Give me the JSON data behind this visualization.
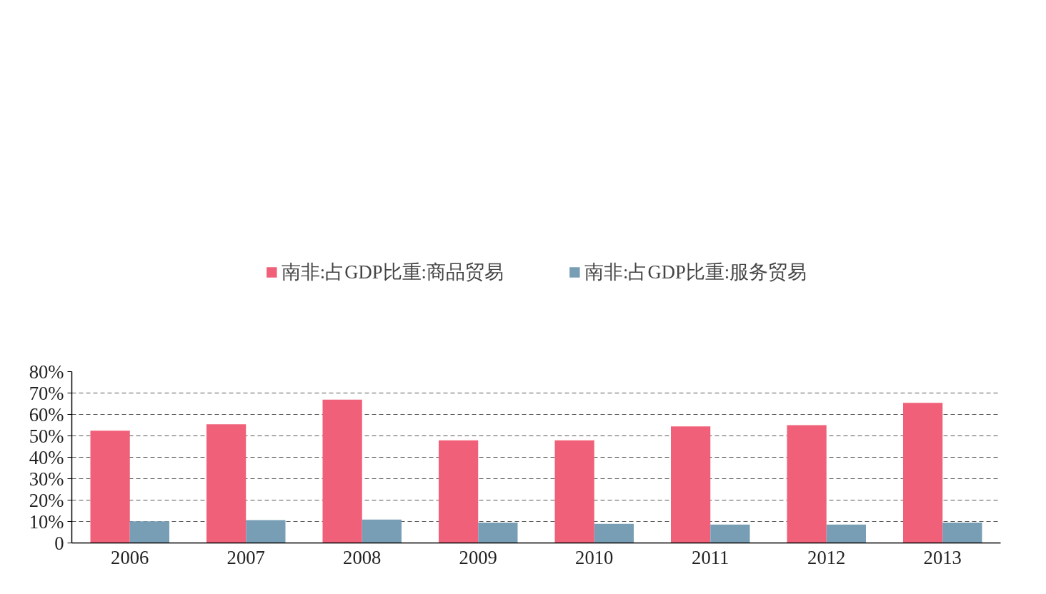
{
  "chart_data": {
    "type": "bar",
    "categories": [
      "2006",
      "2007",
      "2008",
      "2009",
      "2010",
      "2011",
      "2012",
      "2013"
    ],
    "series": [
      {
        "name": "南非:占GDP比重:商品贸易",
        "color": "#f06078",
        "values": [
          52.4,
          55.4,
          66.9,
          47.9,
          47.9,
          54.4,
          55.0,
          65.4
        ]
      },
      {
        "name": "南非:占GDP比重:服务贸易",
        "color": "#789eb5",
        "values": [
          10.1,
          10.7,
          10.9,
          9.5,
          8.9,
          8.6,
          8.6,
          9.5
        ]
      }
    ],
    "ylim": [
      0,
      80
    ],
    "yticks": [
      {
        "value": 0,
        "label": "0"
      },
      {
        "value": 10,
        "label": "10%"
      },
      {
        "value": 20,
        "label": "20%"
      },
      {
        "value": 30,
        "label": "30%"
      },
      {
        "value": 40,
        "label": "40%"
      },
      {
        "value": 50,
        "label": "50%"
      },
      {
        "value": 60,
        "label": "60%"
      },
      {
        "value": 70,
        "label": "70%"
      },
      {
        "value": 80,
        "label": "80%"
      }
    ],
    "grid": "y",
    "legend": "top"
  }
}
